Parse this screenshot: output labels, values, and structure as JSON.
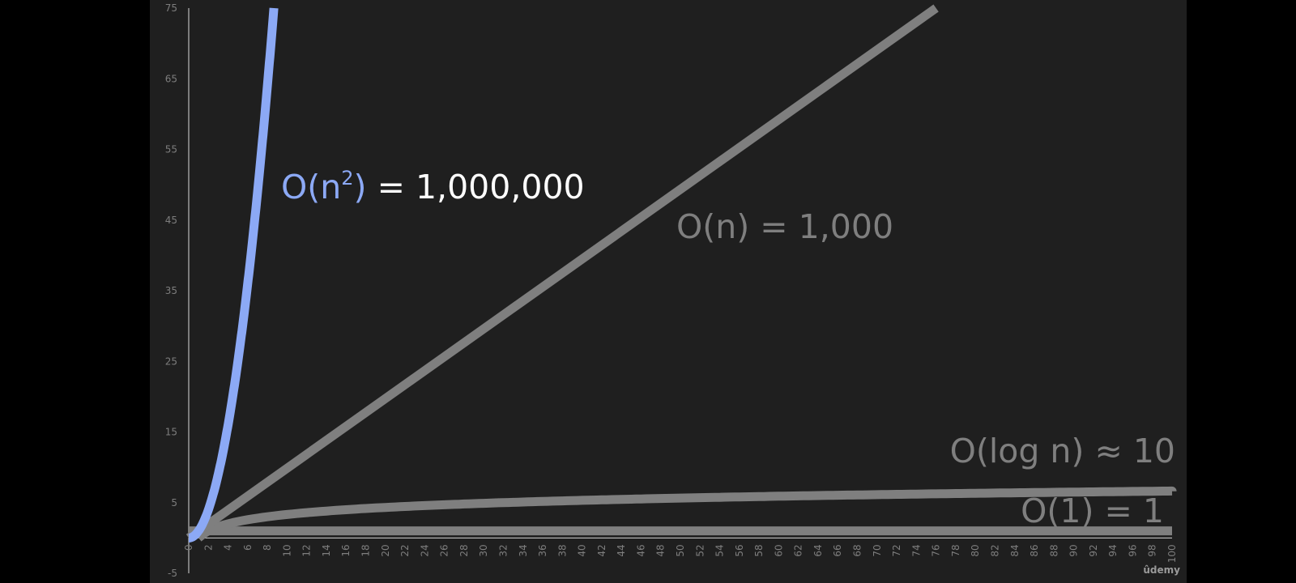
{
  "chart_data": {
    "type": "line",
    "xlim": [
      0,
      100
    ],
    "ylim": [
      -5,
      75
    ],
    "x_ticks": [
      "0",
      "2",
      "4",
      "6",
      "8",
      "10",
      "12",
      "14",
      "16",
      "18",
      "20",
      "22",
      "24",
      "26",
      "28",
      "30",
      "32",
      "34",
      "36",
      "38",
      "40",
      "42",
      "44",
      "46",
      "48",
      "50",
      "52",
      "54",
      "56",
      "58",
      "60",
      "62",
      "64",
      "66",
      "68",
      "70",
      "72",
      "74",
      "76",
      "78",
      "80",
      "82",
      "84",
      "86",
      "88",
      "90",
      "92",
      "94",
      "96",
      "98",
      "100"
    ],
    "y_ticks": [
      "75",
      "65",
      "55",
      "45",
      "35",
      "25",
      "15",
      "5",
      "-5"
    ],
    "series": [
      {
        "key": "quadratic",
        "color": "#8ca9f5",
        "points": [
          [
            0,
            0
          ],
          [
            1,
            1
          ],
          [
            2,
            4
          ],
          [
            3,
            9
          ],
          [
            4,
            16
          ],
          [
            5,
            25
          ],
          [
            6,
            36
          ],
          [
            7,
            49
          ],
          [
            8,
            64
          ],
          [
            8.66,
            75
          ]
        ]
      },
      {
        "key": "linear",
        "color": "#7f7f7f",
        "points": [
          [
            0,
            0
          ],
          [
            76,
            75
          ]
        ]
      },
      {
        "key": "logarithmic",
        "color": "#7f7f7f",
        "points": [
          [
            1,
            0
          ],
          [
            2,
            1
          ],
          [
            4,
            2
          ],
          [
            8,
            3
          ],
          [
            16,
            4
          ],
          [
            32,
            5
          ],
          [
            64,
            6
          ],
          [
            100,
            6.6
          ]
        ]
      },
      {
        "key": "constant",
        "color": "#7f7f7f",
        "points": [
          [
            0,
            1
          ],
          [
            100,
            1
          ]
        ]
      }
    ],
    "annotations": {
      "quadratic_big_o": "O(n",
      "quadratic_exp": "2",
      "quadratic_close": ")",
      "quadratic_value": " = 1,000,000",
      "linear": "O(n) = 1,000",
      "logarithmic": "O(log n) ≈ 10",
      "constant": "O(1) = 1"
    },
    "colors": {
      "highlight": "#8ca9f5",
      "muted": "#7f7f7f",
      "white": "#ffffff"
    }
  },
  "watermark": "ûdemy"
}
